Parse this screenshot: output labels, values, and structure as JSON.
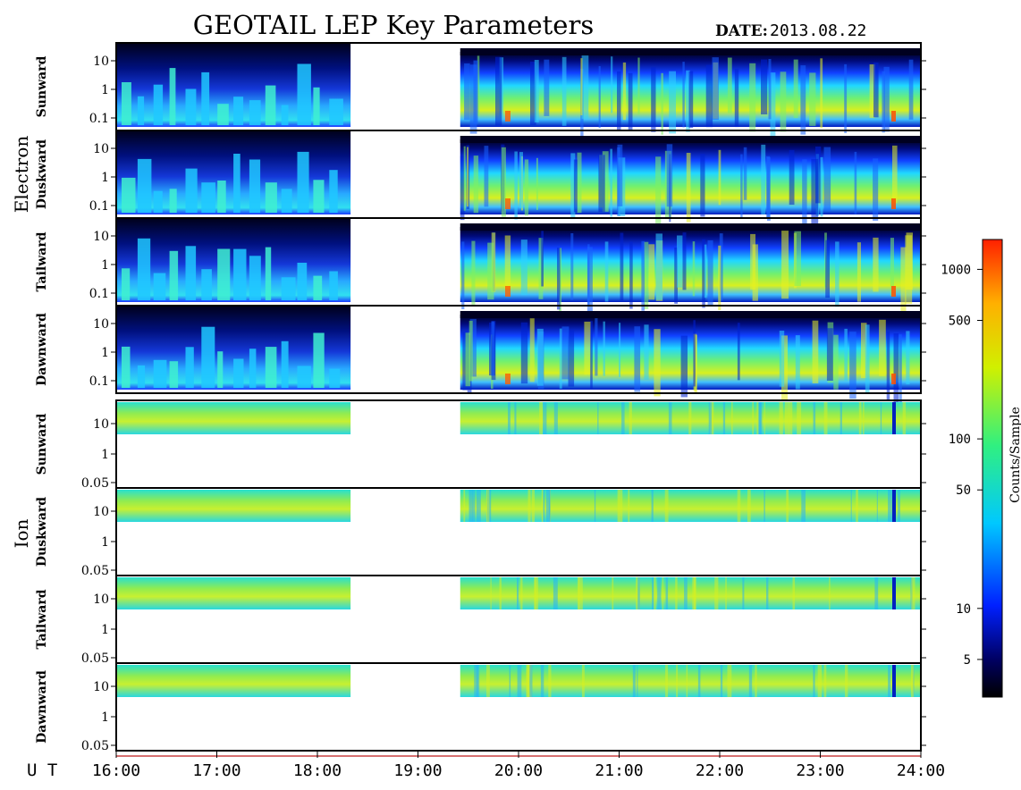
{
  "header": {
    "title": "GEOTAIL LEP Key Parameters",
    "date_label": "DATE:",
    "date_value": "2013.08.22"
  },
  "time_axis": {
    "prefix": "U T",
    "ticks": [
      "16:00",
      "17:00",
      "18:00",
      "19:00",
      "20:00",
      "21:00",
      "22:00",
      "23:00",
      "24:00"
    ]
  },
  "groups": {
    "electron": "Electron",
    "ion": "Ion"
  },
  "colorbar": {
    "label": "Counts/Sample",
    "ticks": [
      "1000",
      "500",
      "100",
      "50",
      "10",
      "5"
    ]
  },
  "chart_data": {
    "type": "heatmap",
    "title": "GEOTAIL LEP Key Parameters",
    "date": "2013.08.22",
    "x_range_hours": [
      16,
      24
    ],
    "data_gap_hours": [
      18.33,
      19.42
    ],
    "colorbar": {
      "label": "Counts/Sample",
      "scale": "log",
      "range": [
        3,
        1500
      ],
      "ticks": [
        5,
        10,
        50,
        100,
        500,
        1000
      ]
    },
    "panels": [
      {
        "group": "Electron",
        "direction": "Sunward",
        "y_ticks": [
          "10",
          "1",
          "0.1"
        ]
      },
      {
        "group": "Electron",
        "direction": "Duskward",
        "y_ticks": [
          "10",
          "1",
          "0.1"
        ]
      },
      {
        "group": "Electron",
        "direction": "Tailward",
        "y_ticks": [
          "10",
          "1",
          "0.1"
        ]
      },
      {
        "group": "Electron",
        "direction": "Dawnward",
        "y_ticks": [
          "10",
          "1",
          "0.1"
        ]
      },
      {
        "group": "Ion",
        "direction": "Sunward",
        "y_ticks": [
          "10",
          "1",
          "0.05"
        ]
      },
      {
        "group": "Ion",
        "direction": "Duskward",
        "y_ticks": [
          "10",
          "1",
          "0.05"
        ]
      },
      {
        "group": "Ion",
        "direction": "Tailward",
        "y_ticks": [
          "10",
          "1",
          "0.05"
        ]
      },
      {
        "group": "Ion",
        "direction": "Dawnward",
        "y_ticks": [
          "10",
          "1",
          "0.05"
        ]
      }
    ]
  }
}
